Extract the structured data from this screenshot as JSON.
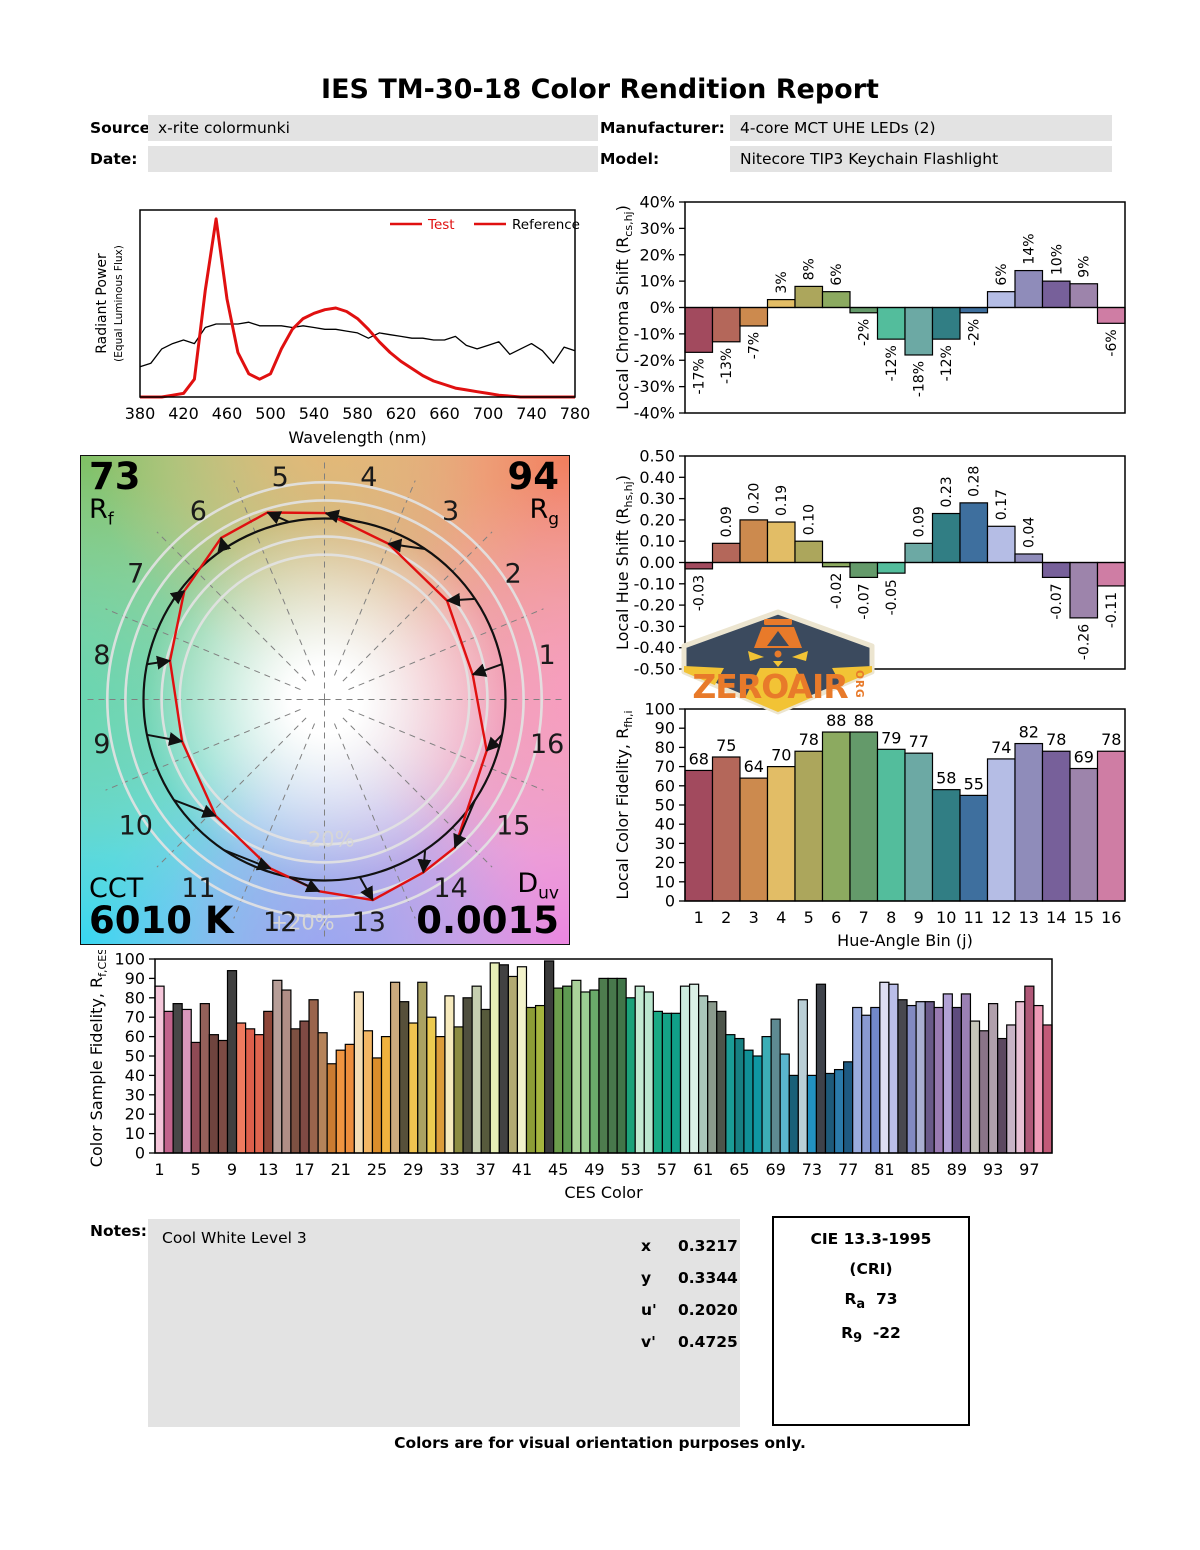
{
  "title": "IES TM-30-18 Color Rendition Report",
  "meta": {
    "source_label": "Source:",
    "source": "x-rite colormunki",
    "date_label": "Date:",
    "date": "",
    "manufacturer_label": "Manufacturer:",
    "manufacturer": "4-core MCT UHE LEDs (2)",
    "model_label": "Model:",
    "model": "Nitecore TIP3 Keychain Flashlight"
  },
  "cvg": {
    "rf_value": "73",
    "rf_label": "R",
    "rf_sub": "f",
    "rg_value": "94",
    "rg_label": "R",
    "rg_sub": "g",
    "cct_label": "CCT",
    "cct_value": "6010 K",
    "duv_label": "D",
    "duv_sub": "uv",
    "duv_value": "0.0015"
  },
  "notes": {
    "label": "Notes:",
    "text": "Cool White Level 3"
  },
  "chromaticity": {
    "rows": [
      {
        "label": "x",
        "value": "0.3217"
      },
      {
        "label": "y",
        "value": "0.3344"
      },
      {
        "label": "u'",
        "value": "0.2020"
      },
      {
        "label": "v'",
        "value": "0.4725"
      }
    ]
  },
  "cri": {
    "title": "CIE 13.3-1995",
    "subtitle": "(CRI)",
    "ra_label": "R",
    "ra_sub": "a",
    "ra_value": "73",
    "r9_label": "R",
    "r9_sub": "9",
    "r9_value": "-22"
  },
  "footer": "Colors are for visual orientation purposes only.",
  "watermark": {
    "main": "ZEROAIR",
    "suffix": "ORG"
  },
  "bin_colors": [
    "#a24a5e",
    "#b4675a",
    "#cc8a4e",
    "#e2bd66",
    "#aca65c",
    "#8caa60",
    "#649a6a",
    "#53bd9c",
    "#6ca9a4",
    "#317e84",
    "#3e6f9e",
    "#b5bde5",
    "#8f8cba",
    "#77609a",
    "#9d84ab",
    "#cf7da4"
  ],
  "chart_data": [
    {
      "id": "spd-chart",
      "type": "line",
      "xlabel": "Wavelength (nm)",
      "ylabel_line1": "Radiant Power",
      "ylabel_line2": "(Equal Luminous Flux)",
      "x_start": 380,
      "x_step": 10,
      "x_range": [
        380,
        780
      ],
      "x_tick_step": 40,
      "ylim": [
        0,
        1.05
      ],
      "grid": false,
      "legend_position": "top-right",
      "legend": [
        {
          "label": "Test",
          "swatch": "#e01010",
          "text_color": "#e01010"
        },
        {
          "label": "Reference",
          "swatch": "#e01010",
          "text_color": "#000000"
        }
      ],
      "series": [
        {
          "name": "Reference",
          "color": "#000000",
          "width": 1.3,
          "values": [
            0.17,
            0.19,
            0.27,
            0.3,
            0.32,
            0.3,
            0.39,
            0.41,
            0.41,
            0.41,
            0.42,
            0.4,
            0.4,
            0.4,
            0.39,
            0.4,
            0.39,
            0.38,
            0.38,
            0.37,
            0.36,
            0.33,
            0.36,
            0.35,
            0.34,
            0.33,
            0.33,
            0.32,
            0.32,
            0.34,
            0.29,
            0.27,
            0.29,
            0.31,
            0.24,
            0.27,
            0.3,
            0.26,
            0.19,
            0.28,
            0.26
          ]
        },
        {
          "name": "Test",
          "color": "#e01010",
          "width": 3,
          "values": [
            0,
            0,
            0,
            0.01,
            0.02,
            0.1,
            0.6,
            1.0,
            0.55,
            0.25,
            0.13,
            0.1,
            0.13,
            0.27,
            0.38,
            0.44,
            0.47,
            0.49,
            0.5,
            0.48,
            0.44,
            0.38,
            0.31,
            0.25,
            0.2,
            0.16,
            0.12,
            0.09,
            0.07,
            0.05,
            0.04,
            0.03,
            0.02,
            0.01,
            0.005,
            0,
            0,
            0,
            0,
            0,
            0
          ]
        }
      ]
    },
    {
      "id": "chroma-chart",
      "type": "bar",
      "ylabel_pre": "Local Chroma Shift (R",
      "ylabel_sub": "cs,hj",
      "ylabel_post": ")",
      "ylim": [
        -40,
        40
      ],
      "ystep": 10,
      "y_suffix": "%",
      "y_decimals": 0,
      "label_suffix": "%",
      "rotated_labels": true,
      "zero_line": true,
      "categories": [
        1,
        2,
        3,
        4,
        5,
        6,
        7,
        8,
        9,
        10,
        11,
        12,
        13,
        14,
        15,
        16
      ],
      "show_categories": false,
      "values": [
        -17,
        -13,
        -7,
        3,
        8,
        6,
        -2,
        -12,
        -18,
        -12,
        -2,
        6,
        14,
        10,
        9,
        -6
      ],
      "colors": "bin_colors"
    },
    {
      "id": "hue-chart",
      "type": "bar",
      "ylabel_pre": "Local Hue Shift (R",
      "ylabel_sub": "hs,hj",
      "ylabel_post": ")",
      "ylim": [
        -0.5,
        0.5
      ],
      "ystep": 0.1,
      "y_suffix": "",
      "y_decimals": 2,
      "label_decimals": 2,
      "rotated_labels": true,
      "zero_line": true,
      "categories": [
        1,
        2,
        3,
        4,
        5,
        6,
        7,
        8,
        9,
        10,
        11,
        12,
        13,
        14,
        15,
        16
      ],
      "show_categories": false,
      "values": [
        -0.03,
        0.09,
        0.2,
        0.19,
        0.1,
        -0.02,
        -0.07,
        -0.05,
        0.09,
        0.23,
        0.28,
        0.17,
        0.04,
        -0.07,
        -0.26,
        -0.11
      ],
      "colors": "bin_colors"
    },
    {
      "id": "fidelity-chart",
      "type": "bar",
      "ylabel_pre": "Local Color Fidelity, R",
      "ylabel_sub": "fh,i",
      "ylabel_post": "",
      "xlabel": "Hue-Angle Bin (j)",
      "ylim": [
        0,
        100
      ],
      "ystep": 10,
      "y_suffix": "",
      "y_decimals": 0,
      "rotated_labels": false,
      "zero_line": false,
      "categories": [
        1,
        2,
        3,
        4,
        5,
        6,
        7,
        8,
        9,
        10,
        11,
        12,
        13,
        14,
        15,
        16
      ],
      "show_categories": true,
      "values": [
        68,
        75,
        64,
        70,
        78,
        88,
        88,
        79,
        77,
        58,
        55,
        74,
        82,
        78,
        69,
        78
      ],
      "colors": "bin_colors"
    },
    {
      "id": "ces-chart",
      "type": "bar",
      "ylabel_pre": "Color Sample Fidelity, R",
      "ylabel_sub": "f,CESi",
      "ylabel_post": "",
      "xlabel": "CES Color",
      "ylim": [
        0,
        100
      ],
      "ystep": 10,
      "y_suffix": "",
      "y_decimals": 0,
      "rotated_labels": false,
      "zero_line": false,
      "hide_bar_labels": true,
      "x_tick_every": 4,
      "show_categories": true,
      "categories": [
        1,
        2,
        3,
        4,
        5,
        6,
        7,
        8,
        9,
        10,
        11,
        12,
        13,
        14,
        15,
        16,
        17,
        18,
        19,
        20,
        21,
        22,
        23,
        24,
        25,
        26,
        27,
        28,
        29,
        30,
        31,
        32,
        33,
        34,
        35,
        36,
        37,
        38,
        39,
        40,
        41,
        42,
        43,
        44,
        45,
        46,
        47,
        48,
        49,
        50,
        51,
        52,
        53,
        54,
        55,
        56,
        57,
        58,
        59,
        60,
        61,
        62,
        63,
        64,
        65,
        66,
        67,
        68,
        69,
        70,
        71,
        72,
        73,
        74,
        75,
        76,
        77,
        78,
        79,
        80,
        81,
        82,
        83,
        84,
        85,
        86,
        87,
        88,
        89,
        90,
        91,
        92,
        93,
        94,
        95,
        96,
        97,
        98,
        99
      ],
      "values": [
        86,
        73,
        77,
        74,
        57,
        77,
        61,
        58,
        94,
        67,
        64,
        61,
        73,
        89,
        84,
        64,
        68,
        79,
        62,
        46,
        53,
        56,
        83,
        63,
        49,
        60,
        88,
        78,
        67,
        88,
        70,
        60,
        81,
        65,
        80,
        86,
        74,
        98,
        97,
        91,
        96,
        75,
        76,
        99,
        85,
        86,
        89,
        83,
        84,
        90,
        90,
        90,
        80,
        86,
        83,
        73,
        72,
        72,
        86,
        87,
        81,
        78,
        73,
        61,
        59,
        53,
        50,
        60,
        69,
        51,
        40,
        79,
        40,
        87,
        41,
        43,
        47,
        75,
        71,
        75,
        88,
        87,
        79,
        76,
        78,
        78,
        75,
        82,
        75,
        82,
        68,
        63,
        77,
        59,
        66,
        78,
        86,
        76,
        66
      ],
      "colors": [
        "#f5c6da",
        "#c2638c",
        "#474747",
        "#d897bc",
        "#8f4a55",
        "#94605a",
        "#6f443e",
        "#7d4b44",
        "#3f3f3f",
        "#ee7a5f",
        "#dd5f4b",
        "#e0654f",
        "#8e4638",
        "#b79e98",
        "#b18e86",
        "#7d5142",
        "#7f4a44",
        "#9a644c",
        "#b5835a",
        "#ca7b31",
        "#ef9440",
        "#ec8d3c",
        "#f4ddb4",
        "#f4b765",
        "#db8d2b",
        "#f0b23e",
        "#cbaa7e",
        "#57503a",
        "#f0c350",
        "#aaa262",
        "#ecca50",
        "#dc9c3a",
        "#f6eabd",
        "#8c8c42",
        "#4f4f3e",
        "#c6cfb0",
        "#575a3c",
        "#e6eeb6",
        "#424242",
        "#b2aa72",
        "#f2f2ca",
        "#8c9c36",
        "#a4b43e",
        "#3a3a3a",
        "#6c9c4c",
        "#5e9a52",
        "#aad29a",
        "#9ace92",
        "#6aaa6a",
        "#4e7c4e",
        "#48784c",
        "#417548",
        "#1aa27a",
        "#c2ead2",
        "#bae6ce",
        "#1aaa84",
        "#14a286",
        "#10a088",
        "#cdecdf",
        "#daf0e6",
        "#aac6ba",
        "#8a9a8c",
        "#4c544a",
        "#1a9c96",
        "#178082",
        "#109096",
        "#0f96a2",
        "#3caeb6",
        "#5e8a92",
        "#5ab6ce",
        "#186078",
        "#bacfd6",
        "#2292c2",
        "#3e424a",
        "#1e5a7a",
        "#2a7aaa",
        "#1e5a82",
        "#9aacde",
        "#8a9ad2",
        "#7288ca",
        "#dedef2",
        "#babee9",
        "#48484f",
        "#828ac2",
        "#aab0d2",
        "#6a5a8a",
        "#9a7ab2",
        "#b2a2d6",
        "#5e4c7e",
        "#9a80b4",
        "#c6c6ba",
        "#8a7488",
        "#b0a0ac",
        "#5c4860",
        "#c8b4c6",
        "#e8c0d4",
        "#b05878",
        "#ee9ab6",
        "#c25a78"
      ]
    },
    {
      "id": "cvg-svg",
      "type": "cvg",
      "title": "Color Vector Graphic",
      "rf": 73,
      "rg": 94,
      "cct": "6010 K",
      "duv": 0.0015,
      "bins": [
        1,
        2,
        3,
        4,
        5,
        6,
        7,
        8,
        9,
        10,
        11,
        12,
        13,
        14,
        15,
        16
      ],
      "chroma_shift_pct": [
        -17,
        -13,
        -7,
        3,
        8,
        6,
        -2,
        -12,
        -18,
        -12,
        -2,
        6,
        14,
        10,
        9,
        -6
      ],
      "hue_shift_rad": [
        -0.03,
        0.09,
        0.2,
        0.19,
        0.1,
        -0.02,
        -0.07,
        -0.05,
        0.09,
        0.23,
        0.28,
        0.17,
        0.04,
        -0.07,
        -0.26,
        -0.11
      ],
      "ring_labels": {
        "inner": "-20%",
        "outer": "+20%"
      },
      "reference_color": "#111111",
      "test_color": "#e01010",
      "ring_fractions": [
        0.8,
        0.9,
        1.1,
        1.2
      ]
    }
  ]
}
